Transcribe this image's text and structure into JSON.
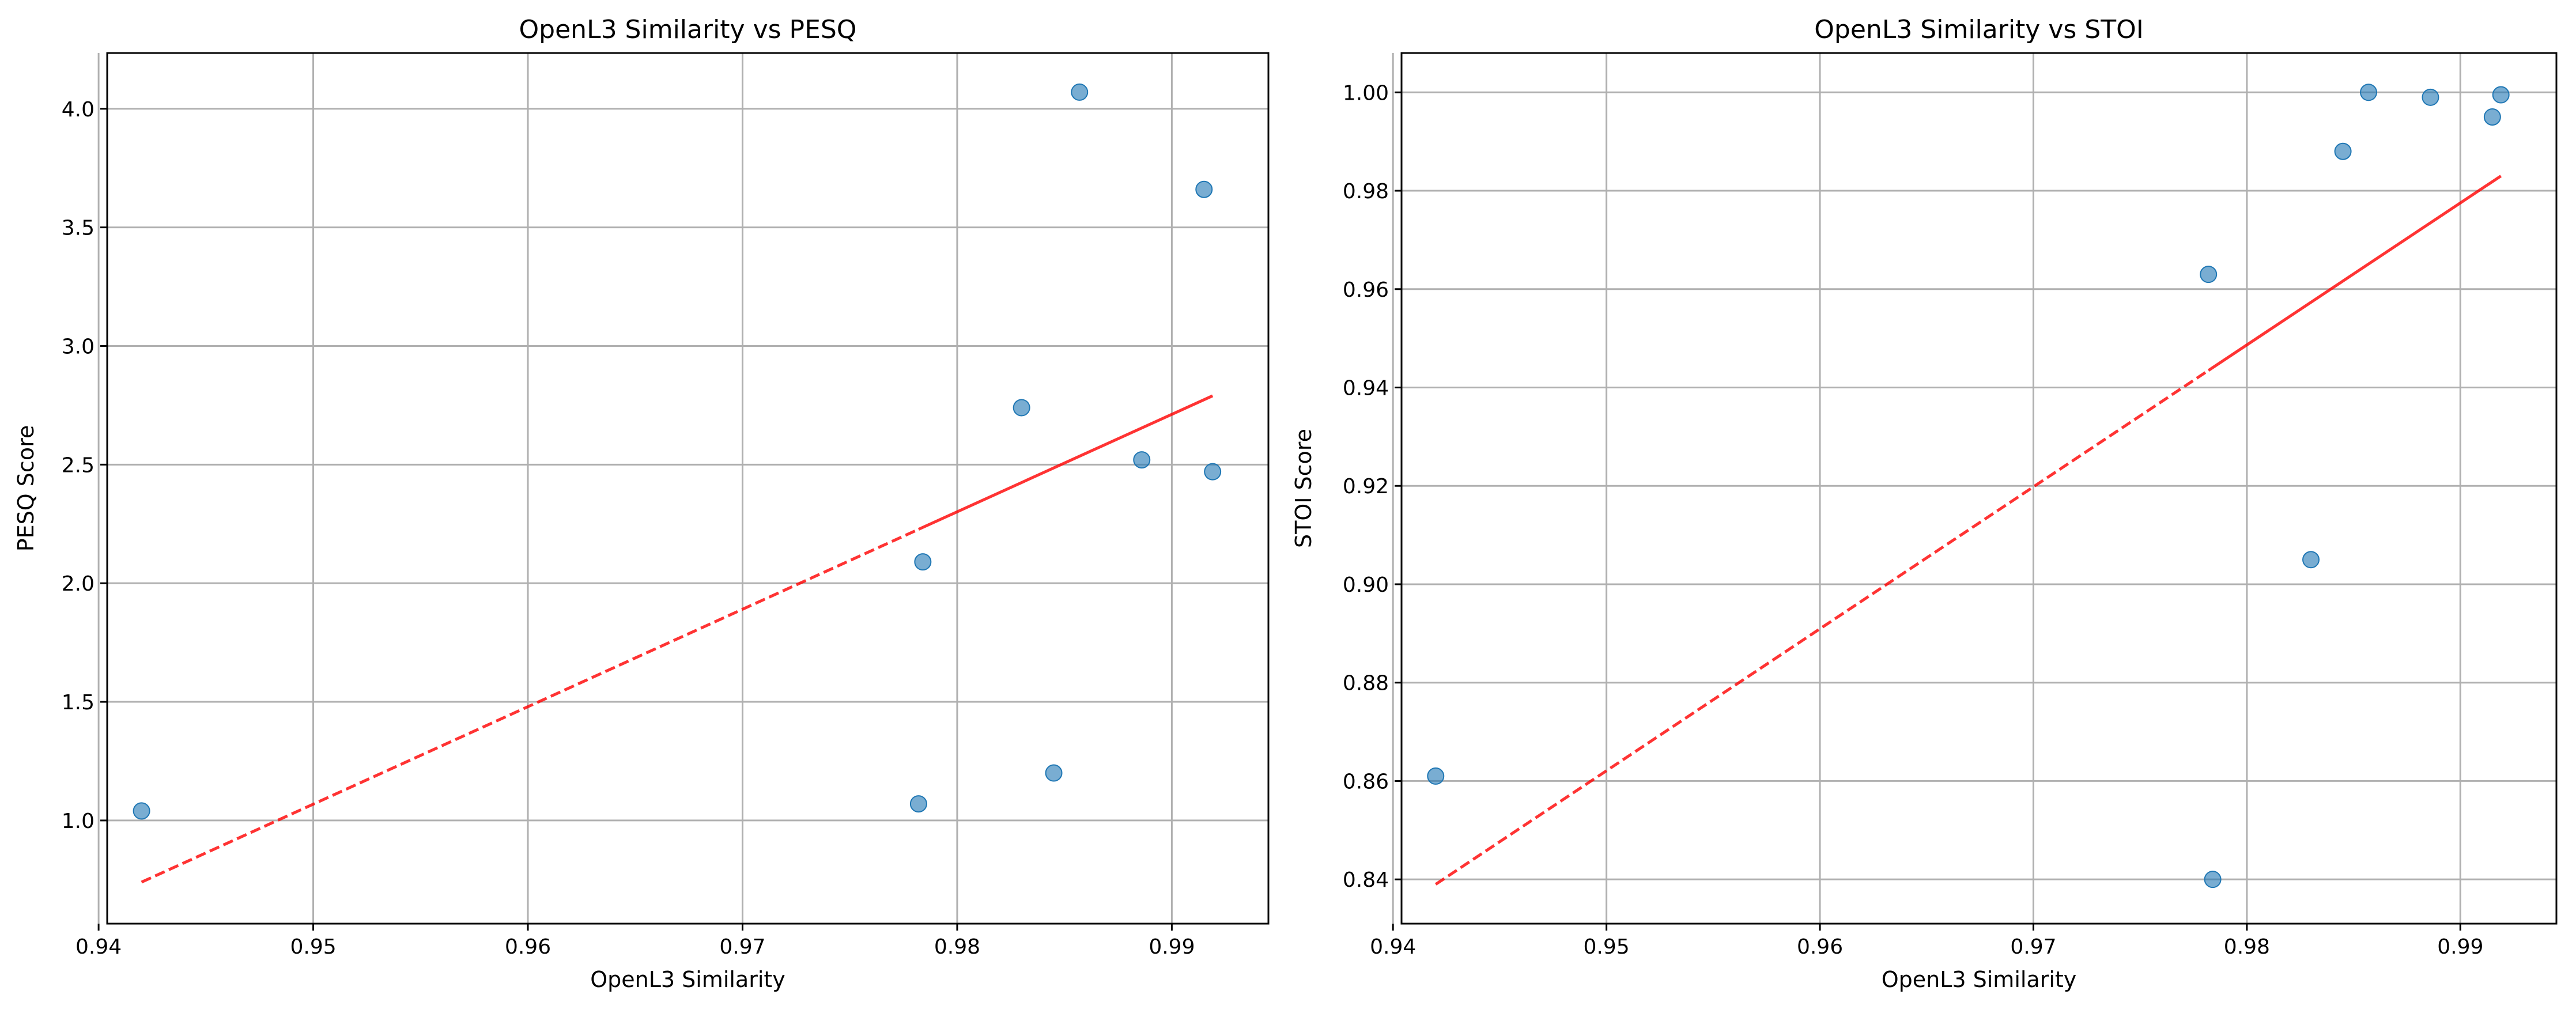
{
  "chart_data": [
    {
      "type": "scatter",
      "title": "OpenL3 Similarity vs PESQ",
      "xlabel": "OpenL3 Similarity",
      "ylabel": "PESQ Score",
      "xlim": [
        0.9404,
        0.9945
      ],
      "ylim": [
        0.565,
        4.235
      ],
      "xticks": [
        0.94,
        0.95,
        0.96,
        0.97,
        0.98,
        0.99
      ],
      "xtick_labels": [
        "0.94",
        "0.95",
        "0.96",
        "0.97",
        "0.98",
        "0.99"
      ],
      "yticks": [
        1.0,
        1.5,
        2.0,
        2.5,
        3.0,
        3.5,
        4.0
      ],
      "ytick_labels": [
        "1.0",
        "1.5",
        "2.0",
        "2.5",
        "3.0",
        "3.5",
        "4.0"
      ],
      "grid": true,
      "points": {
        "x": [
          0.942,
          0.9782,
          0.9784,
          0.983,
          0.9845,
          0.9857,
          0.9886,
          0.9915,
          0.9919
        ],
        "y": [
          1.04,
          1.07,
          2.09,
          2.74,
          1.2,
          4.07,
          2.52,
          3.66,
          2.47
        ]
      },
      "trend": {
        "x": [
          0.942,
          0.9919
        ],
        "y": [
          0.74,
          2.79
        ],
        "solid_from_x": 0.9782,
        "color": "#ff0000"
      },
      "point_color": "#1f77b4"
    },
    {
      "type": "scatter",
      "title": "OpenL3 Similarity vs STOI",
      "xlabel": "OpenL3 Similarity",
      "ylabel": "STOI Score",
      "xlim": [
        0.9404,
        0.9945
      ],
      "ylim": [
        0.831,
        1.008
      ],
      "xticks": [
        0.94,
        0.95,
        0.96,
        0.97,
        0.98,
        0.99
      ],
      "xtick_labels": [
        "0.94",
        "0.95",
        "0.96",
        "0.97",
        "0.98",
        "0.99"
      ],
      "yticks": [
        0.84,
        0.86,
        0.88,
        0.9,
        0.92,
        0.94,
        0.96,
        0.98,
        1.0
      ],
      "ytick_labels": [
        "0.84",
        "0.86",
        "0.88",
        "0.90",
        "0.92",
        "0.94",
        "0.96",
        "0.98",
        "1.00"
      ],
      "grid": true,
      "points": {
        "x": [
          0.942,
          0.9782,
          0.9784,
          0.983,
          0.9845,
          0.9857,
          0.9886,
          0.9915,
          0.9919
        ],
        "y": [
          0.861,
          0.963,
          0.84,
          0.905,
          0.988,
          1.0,
          0.999,
          0.995,
          0.9995
        ]
      },
      "trend": {
        "x": [
          0.942,
          0.9919
        ],
        "y": [
          0.839,
          0.983
        ],
        "solid_from_x": 0.9782,
        "color": "#ff0000"
      },
      "point_color": "#1f77b4"
    }
  ]
}
